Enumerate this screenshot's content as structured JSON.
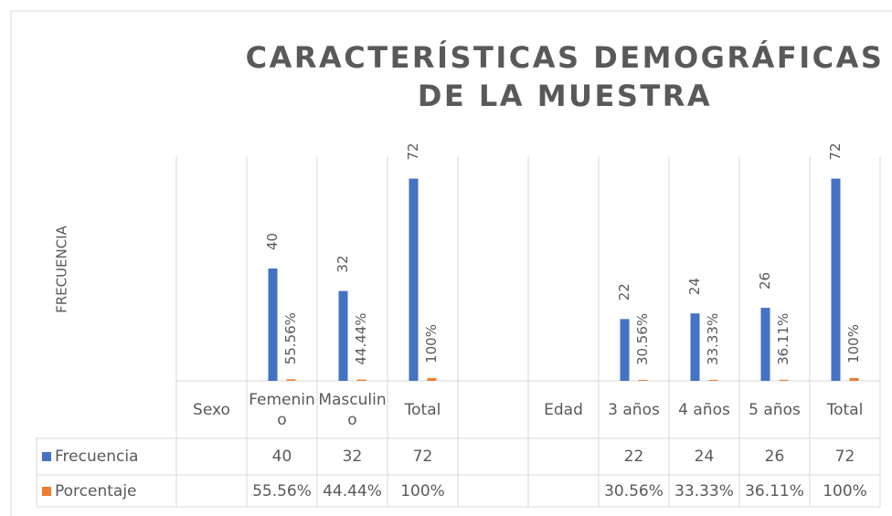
{
  "chart_data": {
    "type": "bar",
    "title": "CARACTERÍSTICAS DEMOGRÁFICAS DE LA MUESTRA",
    "y_label": "FRECUENCIA",
    "categories": [
      "Sexo",
      "Femenino",
      "Masculino",
      "Total",
      null,
      "Edad",
      "3 años",
      "4 años",
      "5 años",
      "Total"
    ],
    "series": [
      {
        "name": "Frecuencia",
        "color": "#4472c4",
        "values": [
          null,
          40,
          32,
          72,
          null,
          null,
          22,
          24,
          26,
          72
        ]
      },
      {
        "name": "Porcentaje",
        "color": "#ed7d31",
        "values": [
          null,
          0.5556,
          0.4444,
          1,
          null,
          null,
          0.3056,
          0.3333,
          0.3611,
          1
        ],
        "value_labels": [
          null,
          "55.56%",
          "44.44%",
          "100%",
          null,
          null,
          "30.56%",
          "33.33%",
          "36.11%",
          "100%"
        ]
      }
    ],
    "ylim": [
      0,
      80
    ],
    "data_table": true
  }
}
